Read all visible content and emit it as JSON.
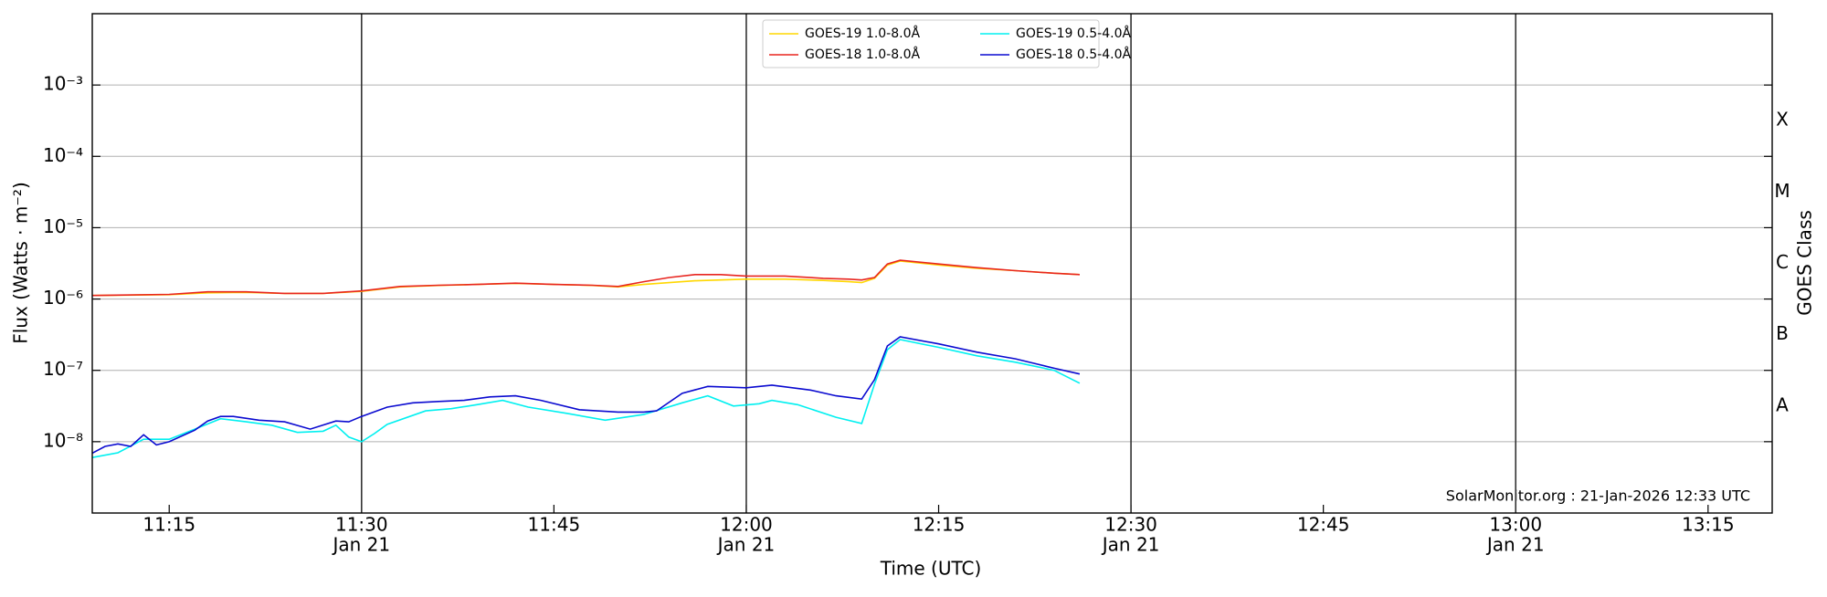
{
  "chart_data": {
    "type": "line",
    "xlabel": "Time (UTC)",
    "ylabel": "Flux (Watts · m⁻²)",
    "y2label": "GOES Class",
    "annotation": "SolarMonitor.org : 21-Jan-2026 12:33 UTC",
    "log_y": true,
    "grid": true,
    "legend": "upper center",
    "xlim": [
      "11:09",
      "13:20"
    ],
    "xticks": [
      {
        "value": "11:15",
        "label": "11:15"
      },
      {
        "value": "11:30",
        "label": "11:30",
        "sublabel": "Jan 21"
      },
      {
        "value": "11:45",
        "label": "11:45"
      },
      {
        "value": "12:00",
        "label": "12:00",
        "sublabel": "Jan 21"
      },
      {
        "value": "12:15",
        "label": "12:15"
      },
      {
        "value": "12:30",
        "label": "12:30",
        "sublabel": "Jan 21"
      },
      {
        "value": "12:45",
        "label": "12:45"
      },
      {
        "value": "13:00",
        "label": "13:00",
        "sublabel": "Jan 21"
      },
      {
        "value": "13:15",
        "label": "13:15"
      }
    ],
    "vlines": [
      "11:30",
      "12:00",
      "12:30",
      "13:00"
    ],
    "ylim": [
      1e-09,
      0.01
    ],
    "yticks": [
      {
        "value": 1e-08,
        "label": "10⁻⁸"
      },
      {
        "value": 1e-07,
        "label": "10⁻⁷"
      },
      {
        "value": 1e-06,
        "label": "10⁻⁶"
      },
      {
        "value": 1e-05,
        "label": "10⁻⁵"
      },
      {
        "value": 0.0001,
        "label": "10⁻⁴"
      },
      {
        "value": 0.001,
        "label": "10⁻³"
      }
    ],
    "y2lim": [
      1e-09,
      0.01
    ],
    "y2ticks": [
      {
        "value": 3.16e-08,
        "label": "A"
      },
      {
        "value": 3.16e-07,
        "label": "B"
      },
      {
        "value": 3.16e-06,
        "label": "C"
      },
      {
        "value": 3.16e-05,
        "label": "M"
      },
      {
        "value": 0.000316,
        "label": "X"
      }
    ],
    "series": [
      {
        "name": "GOES-19 1.0-8.0Å",
        "color": "#ffd700",
        "x": [
          "11:09",
          "11:15",
          "11:18",
          "11:21",
          "11:24",
          "11:27",
          "11:30",
          "11:33",
          "11:36",
          "11:39",
          "11:42",
          "11:45",
          "11:48",
          "11:50",
          "11:52",
          "11:54",
          "11:56",
          "11:58",
          "12:00",
          "12:03",
          "12:06",
          "12:08",
          "12:09",
          "12:10",
          "12:11",
          "12:12",
          "12:15",
          "12:18",
          "12:21",
          "12:24",
          "12:26"
        ],
        "values": [
          1.12e-06,
          1.15e-06,
          1.22e-06,
          1.24e-06,
          1.2e-06,
          1.2e-06,
          1.28e-06,
          1.48e-06,
          1.55e-06,
          1.6e-06,
          1.66e-06,
          1.6e-06,
          1.55e-06,
          1.48e-06,
          1.6e-06,
          1.7e-06,
          1.8e-06,
          1.85e-06,
          1.9e-06,
          1.9e-06,
          1.82e-06,
          1.75e-06,
          1.7e-06,
          1.95e-06,
          3e-06,
          3.4e-06,
          3e-06,
          2.7e-06,
          2.5e-06,
          2.3e-06,
          2.2e-06
        ]
      },
      {
        "name": "GOES-18 1.0-8.0Å",
        "color": "#e8251f",
        "x": [
          "11:09",
          "11:15",
          "11:18",
          "11:21",
          "11:24",
          "11:27",
          "11:30",
          "11:33",
          "11:36",
          "11:39",
          "11:42",
          "11:45",
          "11:48",
          "11:50",
          "11:52",
          "11:54",
          "11:56",
          "11:58",
          "12:00",
          "12:03",
          "12:06",
          "12:08",
          "12:09",
          "12:10",
          "12:11",
          "12:12",
          "12:15",
          "12:18",
          "12:21",
          "12:24",
          "12:26"
        ],
        "values": [
          1.12e-06,
          1.16e-06,
          1.26e-06,
          1.26e-06,
          1.2e-06,
          1.2e-06,
          1.3e-06,
          1.5e-06,
          1.56e-06,
          1.6e-06,
          1.67e-06,
          1.6e-06,
          1.56e-06,
          1.5e-06,
          1.75e-06,
          2e-06,
          2.2e-06,
          2.2e-06,
          2.1e-06,
          2.1e-06,
          1.95e-06,
          1.9e-06,
          1.85e-06,
          2e-06,
          3.1e-06,
          3.5e-06,
          3.1e-06,
          2.75e-06,
          2.5e-06,
          2.3e-06,
          2.2e-06
        ]
      },
      {
        "name": "GOES-19 0.5-4.0Å",
        "color": "#00f0f0",
        "x": [
          "11:09",
          "11:11",
          "11:13",
          "11:15",
          "11:17",
          "11:19",
          "11:21",
          "11:23",
          "11:25",
          "11:27",
          "11:28",
          "11:29",
          "11:30",
          "11:31",
          "11:32",
          "11:35",
          "11:37",
          "11:39",
          "11:41",
          "11:43",
          "11:46",
          "11:49",
          "11:52",
          "11:55",
          "11:57",
          "11:59",
          "12:01",
          "12:02",
          "12:04",
          "12:07",
          "12:09",
          "12:10",
          "12:11",
          "12:12",
          "12:15",
          "12:18",
          "12:21",
          "12:24",
          "12:26"
        ],
        "values": [
          6e-09,
          7e-09,
          1.08e-08,
          1.08e-08,
          1.5e-08,
          2.1e-08,
          1.9e-08,
          1.7e-08,
          1.35e-08,
          1.4e-08,
          1.7e-08,
          1.16e-08,
          1e-08,
          1.3e-08,
          1.75e-08,
          2.7e-08,
          2.9e-08,
          3.3e-08,
          3.8e-08,
          3.05e-08,
          2.5e-08,
          2e-08,
          2.4e-08,
          3.5e-08,
          4.4e-08,
          3.16e-08,
          3.4e-08,
          3.8e-08,
          3.3e-08,
          2.2e-08,
          1.8e-08,
          6.4e-08,
          1.95e-07,
          2.7e-07,
          2.1e-07,
          1.6e-07,
          1.3e-07,
          1e-07,
          6.6e-08
        ]
      },
      {
        "name": "GOES-18 0.5-4.0Å",
        "color": "#0a0ad0",
        "x": [
          "11:09",
          "11:10",
          "11:11",
          "11:12",
          "11:13",
          "11:14",
          "11:15",
          "11:17",
          "11:18",
          "11:19",
          "11:20",
          "11:22",
          "11:24",
          "11:26",
          "11:28",
          "11:29",
          "11:30",
          "11:32",
          "11:34",
          "11:36",
          "11:38",
          "11:40",
          "11:42",
          "11:44",
          "11:47",
          "11:50",
          "11:52",
          "11:53",
          "11:55",
          "11:57",
          "12:00",
          "12:02",
          "12:05",
          "12:07",
          "12:09",
          "12:10",
          "12:11",
          "12:12",
          "12:15",
          "12:18",
          "12:21",
          "12:24",
          "12:26"
        ],
        "values": [
          6.9e-09,
          8.6e-09,
          9.3e-09,
          8.6e-09,
          1.25e-08,
          9e-09,
          1e-08,
          1.45e-08,
          1.95e-08,
          2.26e-08,
          2.26e-08,
          2e-08,
          1.9e-08,
          1.5e-08,
          1.95e-08,
          1.9e-08,
          2.26e-08,
          3.05e-08,
          3.5e-08,
          3.66e-08,
          3.8e-08,
          4.25e-08,
          4.4e-08,
          3.8e-08,
          2.8e-08,
          2.6e-08,
          2.6e-08,
          2.7e-08,
          4.76e-08,
          5.95e-08,
          5.7e-08,
          6.2e-08,
          5.3e-08,
          4.4e-08,
          3.95e-08,
          7.4e-08,
          2.2e-07,
          2.95e-07,
          2.35e-07,
          1.8e-07,
          1.45e-07,
          1.07e-07,
          8.9e-08
        ]
      }
    ]
  }
}
